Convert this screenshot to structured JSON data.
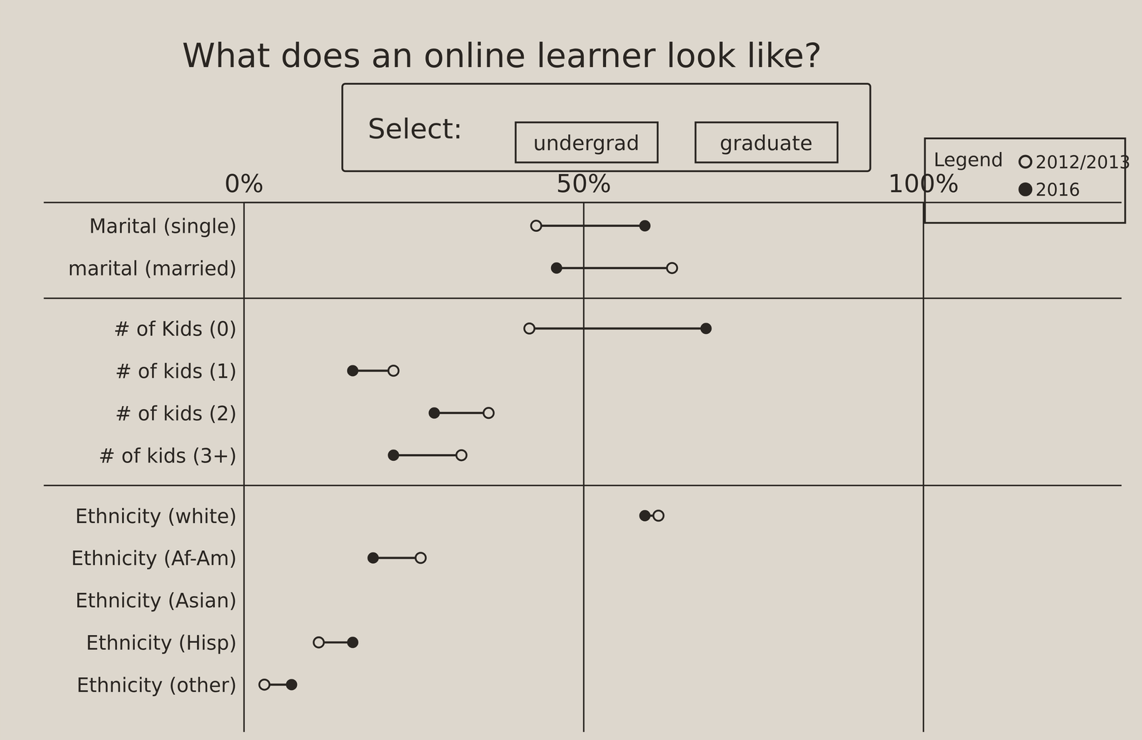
{
  "chart_data": {
    "type": "dumbbell",
    "title": "What does an online learner look like?",
    "selector": {
      "label": "Select:",
      "options": [
        "undergrad",
        "graduate"
      ]
    },
    "legend_title": "Legend",
    "legend": "top-right",
    "orientation": "horizontal",
    "grid": true,
    "categories": [
      "Marital (single)",
      "marital (married)",
      "# of Kids (0)",
      "# of kids (1)",
      "# of kids (2)",
      "# of kids (3+)",
      "Ethnicity (white)",
      "Ethnicity (Af-Am)",
      "Ethnicity (Asian)",
      "Ethnicity (Hisp)",
      "Ethnicity (other)"
    ],
    "series": [
      {
        "name": "2012/2013",
        "color": "#2a2622",
        "marker": "open",
        "values": [
          43,
          63,
          42,
          22,
          36,
          32,
          61,
          26,
          null,
          11,
          3
        ]
      },
      {
        "name": "2016",
        "color": "#2a2622",
        "marker": "filled",
        "values": [
          59,
          46,
          68,
          16,
          28,
          22,
          59,
          19,
          null,
          16,
          7
        ]
      }
    ],
    "xlim": [
      0,
      100
    ],
    "xticks": [
      {
        "value": 0,
        "label": "0%"
      },
      {
        "value": 50,
        "label": "50%"
      },
      {
        "value": 100,
        "label": "100%"
      }
    ]
  }
}
